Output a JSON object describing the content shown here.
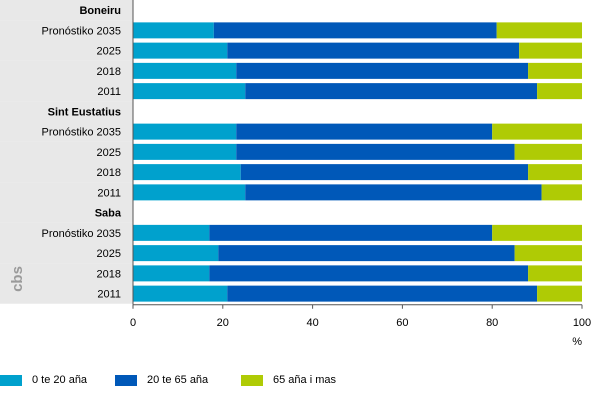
{
  "chart_data": {
    "type": "bar",
    "orientation": "horizontal",
    "stacked": true,
    "groups": [
      {
        "name": "Boneiru",
        "rows": [
          {
            "label": "Pronóstiko 2035",
            "values": [
              18,
              63,
              19
            ]
          },
          {
            "label": "2025",
            "values": [
              21,
              65,
              14
            ]
          },
          {
            "label": "2018",
            "values": [
              23,
              65,
              12
            ]
          },
          {
            "label": "2011",
            "values": [
              25,
              65,
              10
            ]
          }
        ]
      },
      {
        "name": "Sint Eustatius",
        "rows": [
          {
            "label": "Pronóstiko 2035",
            "values": [
              23,
              57,
              20
            ]
          },
          {
            "label": "2025",
            "values": [
              23,
              62,
              15
            ]
          },
          {
            "label": "2018",
            "values": [
              24,
              64,
              12
            ]
          },
          {
            "label": "2011",
            "values": [
              25,
              66,
              9
            ]
          }
        ]
      },
      {
        "name": "Saba",
        "rows": [
          {
            "label": "Pronóstiko 2035",
            "values": [
              17,
              63,
              20
            ]
          },
          {
            "label": "2025",
            "values": [
              19,
              66,
              15
            ]
          },
          {
            "label": "2018",
            "values": [
              17,
              71,
              12
            ]
          },
          {
            "label": "2011",
            "values": [
              21,
              69,
              10
            ]
          }
        ]
      }
    ],
    "series": [
      {
        "name": "0 te 20 aña",
        "color": "#00a1cd"
      },
      {
        "name": "20 te 65 aña",
        "color": "#0058b8"
      },
      {
        "name": "65 aña i mas",
        "color": "#afcb05"
      }
    ],
    "xlim": [
      0,
      100
    ],
    "xticks": [
      "0",
      "20",
      "40",
      "60",
      "80",
      "100"
    ],
    "xunit": "%",
    "legend_position": "bottom",
    "grid": false
  },
  "logo_text": "cbs",
  "colors": {
    "group_header_bg": "#e8e8e8",
    "axis": "#555555"
  }
}
